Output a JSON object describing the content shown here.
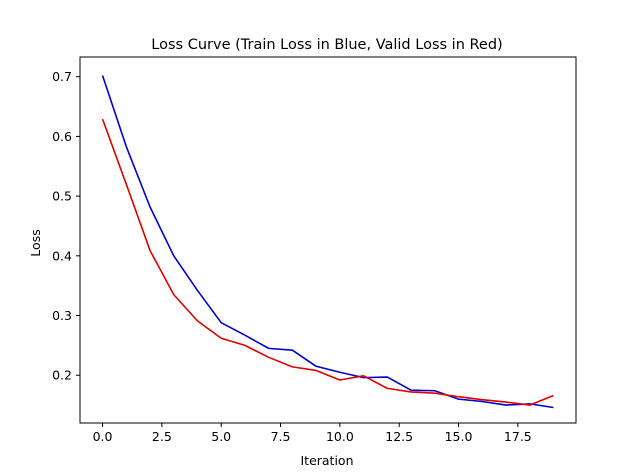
{
  "chart_data": {
    "type": "line",
    "title": "Loss Curve (Train Loss in Blue, Valid Loss in Red)",
    "xlabel": "Iteration",
    "ylabel": "Loss",
    "xlim": [
      -0.95,
      19.95
    ],
    "ylim": [
      0.12,
      0.733
    ],
    "xticks": [
      0,
      2.5,
      5,
      7.5,
      10,
      12.5,
      15,
      17.5
    ],
    "xtick_labels": [
      "0.0",
      "2.5",
      "5.0",
      "7.5",
      "10.0",
      "12.5",
      "15.0",
      "17.5"
    ],
    "yticks": [
      0.2,
      0.3,
      0.4,
      0.5,
      0.6,
      0.7
    ],
    "ytick_labels": [
      "0.2",
      "0.3",
      "0.4",
      "0.5",
      "0.6",
      "0.7"
    ],
    "grid": false,
    "legend": "none",
    "x": [
      0,
      1,
      2,
      3,
      4,
      5,
      6,
      7,
      8,
      9,
      10,
      11,
      12,
      13,
      14,
      15,
      16,
      17,
      18,
      19
    ],
    "series": [
      {
        "color": "#0000cc",
        "values": [
          0.702,
          0.583,
          0.482,
          0.4,
          0.342,
          0.288,
          0.267,
          0.245,
          0.242,
          0.215,
          0.205,
          0.196,
          0.197,
          0.175,
          0.174,
          0.16,
          0.156,
          0.15,
          0.152,
          0.146
        ]
      },
      {
        "color": "#dd0000",
        "values": [
          0.629,
          0.52,
          0.409,
          0.335,
          0.291,
          0.262,
          0.25,
          0.23,
          0.214,
          0.208,
          0.192,
          0.199,
          0.178,
          0.172,
          0.17,
          0.164,
          0.159,
          0.155,
          0.15,
          0.166
        ]
      }
    ]
  }
}
